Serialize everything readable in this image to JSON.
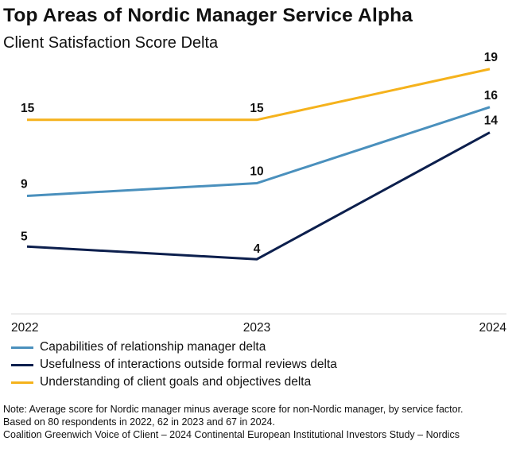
{
  "title": "Top Areas of Nordic Manager Service Alpha",
  "subtitle": "Client Satisfaction Score Delta",
  "chart_data": {
    "type": "line",
    "title": "Top Areas of Nordic Manager Service Alpha",
    "subtitle": "Client Satisfaction Score Delta",
    "categories": [
      "2022",
      "2023",
      "2024"
    ],
    "ylim": [
      0,
      20
    ],
    "grid": false,
    "legend_position": "bottom",
    "series": [
      {
        "name": "Capabilities of relationship manager delta",
        "color": "#4a90bd",
        "values": [
          9,
          10,
          16
        ]
      },
      {
        "name": "Usefulness of interactions outside formal reviews delta",
        "color": "#0c1f4d",
        "values": [
          5,
          4,
          14
        ]
      },
      {
        "name": "Understanding of client goals and objectives delta",
        "color": "#f5b21c",
        "values": [
          15,
          15,
          19
        ]
      }
    ]
  },
  "legend": [
    {
      "label": "Capabilities of relationship manager delta",
      "color": "#4a90bd"
    },
    {
      "label": "Usefulness of interactions outside formal reviews delta",
      "color": "#0c1f4d"
    },
    {
      "label": "Understanding of client goals and objectives delta",
      "color": "#f5b21c"
    }
  ],
  "notes": {
    "line1": "Note: Average score for Nordic manager minus average score for non-Nordic manager, by service factor.",
    "line2": "Based on 80 respondents in 2022, 62 in 2023 and 67 in 2024.",
    "line3": "Coalition Greenwich Voice of Client – 2024 Continental European Institutional Investors Study – Nordics"
  }
}
